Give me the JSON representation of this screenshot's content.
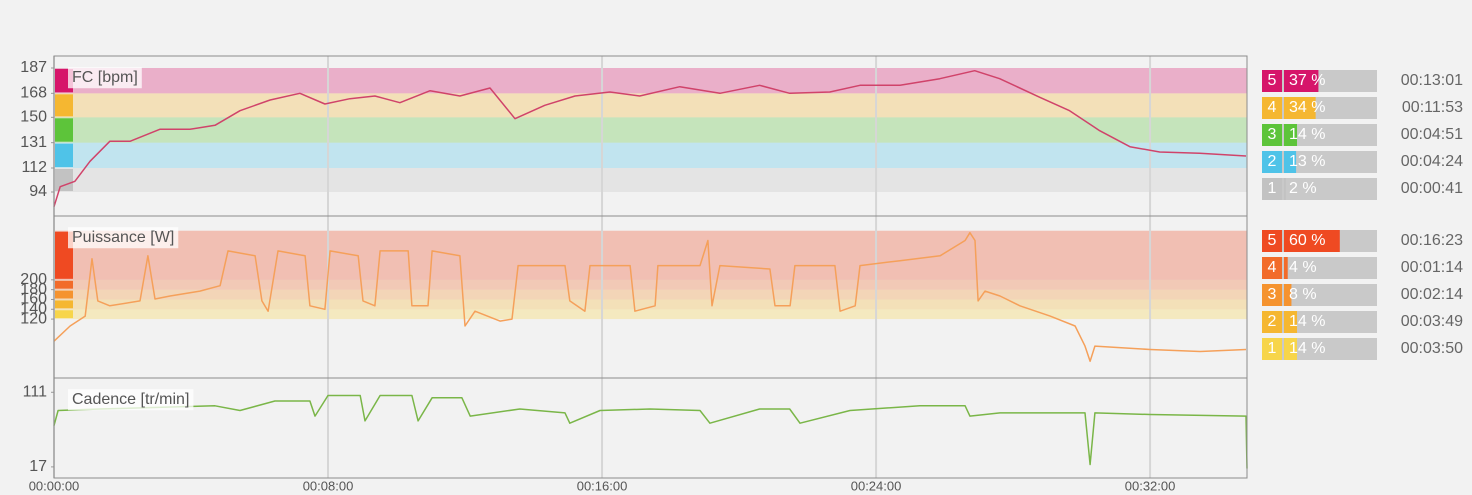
{
  "chart_data": [
    {
      "type": "line",
      "title": "FC [bpm]",
      "color": "#d0436a",
      "x": [
        0,
        0.18,
        0.61,
        1.05,
        1.63,
        2.22,
        3.09,
        3.97,
        4.7,
        5.43,
        6.31,
        7.18,
        7.91,
        8.64,
        9.37,
        10.1,
        10.98,
        11.85,
        12.73,
        13.46,
        14.33,
        15.21,
        16.23,
        17.1,
        18.27,
        19.44,
        20.6,
        21.48,
        22.65,
        23.53,
        24.7,
        25.86,
        26.88,
        27.61,
        28.78,
        29.65,
        30.53,
        31.41,
        32.28,
        33.45,
        34.8
      ],
      "values": [
        83,
        98,
        102,
        117,
        132,
        132,
        141,
        141,
        144,
        155,
        163,
        168,
        160,
        164,
        166,
        161,
        170,
        166,
        172,
        149,
        159,
        166,
        169,
        166,
        173,
        168,
        174,
        168,
        169,
        174,
        174,
        179,
        185,
        179,
        165,
        155,
        140,
        128,
        124,
        123,
        121
      ],
      "xlim": [
        0,
        34.83
      ],
      "ylim": [
        76,
        196
      ],
      "yticks": [
        94,
        112,
        131,
        150,
        168,
        187
      ],
      "zone_bounds": [
        94,
        112,
        131,
        150,
        168,
        187
      ],
      "zones": {
        "categories": [
          "5",
          "4",
          "3",
          "2",
          "1"
        ],
        "colors": [
          "#d6156a",
          "#f5b731",
          "#5dc43a",
          "#4fc3e8",
          "#c2c2c2"
        ],
        "values": [
          37,
          34,
          14,
          13,
          2
        ],
        "value_labels": [
          "37 %",
          "34 %",
          "14 %",
          "13 %",
          "2 %"
        ],
        "durations": [
          "00:13:01",
          "00:11:53",
          "00:04:51",
          "00:04:24",
          "00:00:41"
        ]
      }
    },
    {
      "type": "line",
      "title": "Puissance [W]",
      "color": "#f5a05a",
      "x": [
        0,
        0.47,
        0.91,
        1.11,
        1.28,
        1.63,
        2.51,
        2.74,
        2.95,
        3.39,
        4.26,
        4.85,
        5.08,
        5.87,
        6.07,
        6.25,
        6.54,
        7.33,
        7.47,
        7.91,
        8.06,
        8.88,
        9.02,
        9.37,
        9.52,
        10.34,
        10.45,
        10.92,
        11.04,
        11.85,
        12.0,
        12.29,
        13.02,
        13.37,
        13.55,
        14.92,
        15.06,
        15.5,
        15.65,
        16.82,
        16.96,
        17.55,
        17.63,
        18.86,
        19.09,
        19.21,
        19.44,
        20.9,
        21.05,
        21.49,
        21.63,
        22.8,
        22.95,
        23.39,
        23.53,
        24.7,
        25.87,
        26.6,
        26.74,
        26.89,
        26.98,
        27.18,
        27.62,
        28.2,
        29.08,
        29.81,
        30.1,
        30.25,
        30.39,
        32.0,
        33.46,
        34.8
      ],
      "values": [
        75,
        106,
        126,
        243,
        157,
        147,
        157,
        249,
        161,
        167,
        177,
        188,
        259,
        249,
        157,
        136,
        259,
        249,
        147,
        140,
        259,
        249,
        157,
        147,
        259,
        259,
        147,
        147,
        259,
        249,
        106,
        136,
        116,
        120,
        229,
        229,
        157,
        136,
        229,
        229,
        136,
        147,
        229,
        229,
        280,
        147,
        229,
        222,
        147,
        147,
        229,
        229,
        136,
        147,
        229,
        239,
        249,
        280,
        296,
        280,
        157,
        177,
        167,
        147,
        126,
        106,
        65,
        34,
        65,
        58,
        54,
        58
      ],
      "xlim": [
        0,
        34.83
      ],
      "ylim": [
        0,
        330
      ],
      "yticks": [
        120,
        140,
        160,
        180,
        200
      ],
      "zone_bounds": [
        120,
        140,
        160,
        180,
        200,
        300
      ],
      "zones": {
        "categories": [
          "5",
          "4",
          "3",
          "2",
          "1"
        ],
        "colors": [
          "#ef4a22",
          "#f26b2a",
          "#f5932f",
          "#f5b731",
          "#f7d54a"
        ],
        "values": [
          60,
          4,
          8,
          14,
          14
        ],
        "value_labels": [
          "60 %",
          "4 %",
          "8 %",
          "14 %",
          "14 %"
        ],
        "durations": [
          "00:16:23",
          "00:01:14",
          "00:02:14",
          "00:03:49",
          "00:03:50"
        ]
      }
    },
    {
      "type": "line",
      "title": "Cadence [tr/min]",
      "color": "#7ab648",
      "x": [
        0,
        0.12,
        1.34,
        4.7,
        5.43,
        6.45,
        7.47,
        7.62,
        8.0,
        8.94,
        9.08,
        9.52,
        10.45,
        10.63,
        11.04,
        11.91,
        12.15,
        13.6,
        14.92,
        15.06,
        15.94,
        17.4,
        18.86,
        19.15,
        20.6,
        21.48,
        21.78,
        23.24,
        25.28,
        26.6,
        26.74,
        27.62,
        30.1,
        30.25,
        30.39,
        32.0,
        34.8,
        34.83
      ],
      "values": [
        69,
        88,
        90,
        94,
        88,
        100,
        100,
        81,
        107,
        107,
        75,
        107,
        107,
        75,
        104,
        104,
        81,
        90,
        85,
        72,
        88,
        90,
        88,
        72,
        90,
        90,
        72,
        88,
        94,
        94,
        81,
        85,
        85,
        20,
        85,
        83,
        81,
        15
      ],
      "xlim": [
        0,
        34.83
      ],
      "ylim": [
        3,
        129
      ],
      "yticks": [
        17,
        111
      ],
      "xticks": [
        {
          "value": 0,
          "label": "00:00:00"
        },
        {
          "value": 8,
          "label": "00:08:00"
        },
        {
          "value": 16,
          "label": "00:16:00"
        },
        {
          "value": 24,
          "label": "00:24:00"
        },
        {
          "value": 32,
          "label": "00:32:00"
        }
      ]
    }
  ]
}
